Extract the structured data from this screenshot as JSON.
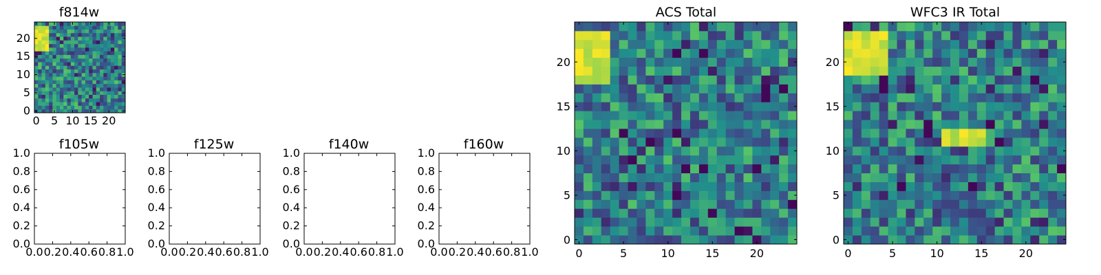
{
  "palette": [
    "#440154",
    "#3b528b",
    "#21918c",
    "#5ec962",
    "#fde725"
  ],
  "chart_data": [
    {
      "type": "heatmap",
      "title": "f814w",
      "grid_size": [
        25,
        25
      ],
      "xlim": [
        -0.5,
        24.5
      ],
      "ylim": [
        -0.5,
        24.5
      ],
      "xticks": [
        0,
        5,
        10,
        15,
        20
      ],
      "yticks": [
        0,
        5,
        10,
        15,
        20
      ],
      "colormap": "viridis",
      "origin": "lower",
      "bright_region": {
        "x": [
          0,
          3
        ],
        "y": [
          17,
          23
        ]
      },
      "values": []
    },
    {
      "type": "heatmap",
      "title": "f105w",
      "xlim": [
        0.0,
        1.0
      ],
      "ylim": [
        0.0,
        1.0
      ],
      "xtick_labels": [
        "0.0",
        "0.2",
        "0.4",
        "0.6",
        "0.8",
        "1.0"
      ],
      "ytick_labels": [
        "0.0",
        "0.2",
        "0.4",
        "0.6",
        "0.8",
        "1.0"
      ],
      "values": []
    },
    {
      "type": "heatmap",
      "title": "f125w",
      "xlim": [
        0.0,
        1.0
      ],
      "ylim": [
        0.0,
        1.0
      ],
      "xtick_labels": [
        "0.0",
        "0.2",
        "0.4",
        "0.6",
        "0.8",
        "1.0"
      ],
      "ytick_labels": [
        "0.0",
        "0.2",
        "0.4",
        "0.6",
        "0.8",
        "1.0"
      ],
      "values": []
    },
    {
      "type": "heatmap",
      "title": "f140w",
      "xlim": [
        0.0,
        1.0
      ],
      "ylim": [
        0.0,
        1.0
      ],
      "xtick_labels": [
        "0.0",
        "0.2",
        "0.4",
        "0.6",
        "0.8",
        "1.0"
      ],
      "ytick_labels": [
        "0.0",
        "0.2",
        "0.4",
        "0.6",
        "0.8",
        "1.0"
      ],
      "values": []
    },
    {
      "type": "heatmap",
      "title": "f160w",
      "xlim": [
        0.0,
        1.0
      ],
      "ylim": [
        0.0,
        1.0
      ],
      "xtick_labels": [
        "0.0",
        "0.2",
        "0.4",
        "0.6",
        "0.8",
        "1.0"
      ],
      "ytick_labels": [
        "0.0",
        "0.2",
        "0.4",
        "0.6",
        "0.8",
        "1.0"
      ],
      "values": []
    },
    {
      "type": "heatmap",
      "title": "ACS Total",
      "grid_size": [
        25,
        25
      ],
      "xlim": [
        -0.5,
        24.5
      ],
      "ylim": [
        -0.5,
        24.5
      ],
      "xticks": [
        0,
        5,
        10,
        15,
        20
      ],
      "yticks": [
        0,
        5,
        10,
        15,
        20
      ],
      "colormap": "viridis",
      "origin": "lower",
      "bright_region": {
        "x": [
          0,
          3
        ],
        "y": [
          18,
          23
        ]
      },
      "dark_cells": [
        [
          5,
          12
        ],
        [
          11,
          12
        ],
        [
          8,
          11
        ],
        [
          6,
          9
        ],
        [
          12,
          8
        ],
        [
          14,
          8
        ],
        [
          11,
          5
        ],
        [
          15,
          3
        ],
        [
          18,
          1
        ],
        [
          24,
          4
        ],
        [
          20,
          8
        ],
        [
          21,
          16
        ],
        [
          11,
          21
        ],
        [
          14,
          21
        ],
        [
          21,
          17
        ],
        [
          23,
          17
        ]
      ],
      "values": []
    },
    {
      "type": "heatmap",
      "title": "WFC3 IR Total",
      "grid_size": [
        25,
        25
      ],
      "xlim": [
        -0.5,
        24.5
      ],
      "ylim": [
        -0.5,
        24.5
      ],
      "xticks": [
        0,
        5,
        10,
        15,
        20
      ],
      "yticks": [
        0,
        5,
        10,
        15,
        20
      ],
      "colormap": "viridis",
      "origin": "lower",
      "bright_region": {
        "x": [
          0,
          4
        ],
        "y": [
          19,
          23
        ]
      },
      "secondary_bright_region": {
        "x": [
          11,
          15
        ],
        "y": [
          11,
          12
        ]
      },
      "dark_cells": [
        [
          0,
          24
        ],
        [
          4,
          18
        ],
        [
          9,
          13
        ],
        [
          16,
          13
        ],
        [
          9,
          12
        ],
        [
          21,
          18
        ],
        [
          24,
          8
        ],
        [
          6,
          6
        ],
        [
          14,
          6
        ],
        [
          4,
          17
        ],
        [
          17,
          11
        ]
      ],
      "values": []
    }
  ]
}
